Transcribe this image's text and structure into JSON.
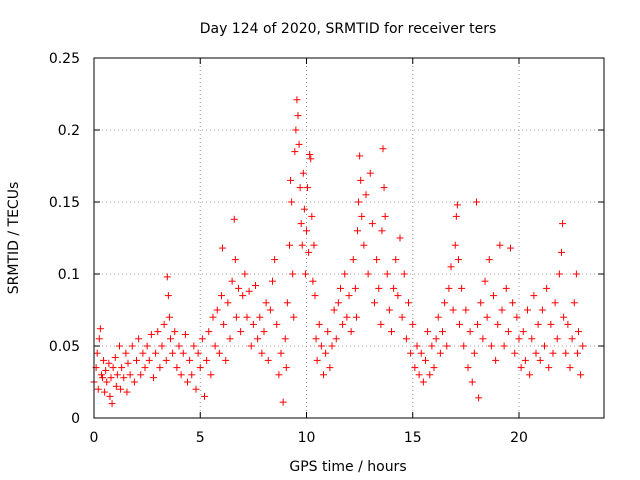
{
  "chart_data": {
    "type": "scatter",
    "title": "Day 124 of 2020, SRMTID for receiver ters",
    "xlabel": "GPS time / hours",
    "ylabel": "SRMTID / TECUs",
    "xlim": [
      0,
      24
    ],
    "ylim": [
      0,
      0.25
    ],
    "xticks": [
      0,
      5,
      10,
      15,
      20
    ],
    "xtick_labels": [
      "0",
      "5",
      "10",
      "15",
      "20"
    ],
    "yticks": [
      0,
      0.05,
      0.1,
      0.15,
      0.2,
      0.25
    ],
    "ytick_labels": [
      "0",
      "0.05",
      "0.1",
      "0.15",
      "0.2",
      "0.25"
    ],
    "grid": true,
    "marker": "plus",
    "color": "#ff0000",
    "series": [
      {
        "name": "SRMTID",
        "points": [
          [
            0.0,
            0.025
          ],
          [
            0.1,
            0.035
          ],
          [
            0.15,
            0.045
          ],
          [
            0.2,
            0.02
          ],
          [
            0.25,
            0.055
          ],
          [
            0.3,
            0.062
          ],
          [
            0.35,
            0.03
          ],
          [
            0.4,
            0.028
          ],
          [
            0.45,
            0.04
          ],
          [
            0.5,
            0.018
          ],
          [
            0.55,
            0.033
          ],
          [
            0.6,
            0.025
          ],
          [
            0.7,
            0.038
          ],
          [
            0.75,
            0.015
          ],
          [
            0.8,
            0.028
          ],
          [
            0.85,
            0.01
          ],
          [
            0.9,
            0.035
          ],
          [
            1.0,
            0.042
          ],
          [
            1.05,
            0.022
          ],
          [
            1.1,
            0.03
          ],
          [
            1.2,
            0.05
          ],
          [
            1.25,
            0.02
          ],
          [
            1.3,
            0.035
          ],
          [
            1.4,
            0.028
          ],
          [
            1.5,
            0.045
          ],
          [
            1.55,
            0.018
          ],
          [
            1.6,
            0.038
          ],
          [
            1.7,
            0.03
          ],
          [
            1.8,
            0.05
          ],
          [
            1.9,
            0.025
          ],
          [
            2.0,
            0.04
          ],
          [
            2.1,
            0.055
          ],
          [
            2.2,
            0.03
          ],
          [
            2.3,
            0.045
          ],
          [
            2.4,
            0.035
          ],
          [
            2.5,
            0.05
          ],
          [
            2.6,
            0.04
          ],
          [
            2.7,
            0.058
          ],
          [
            2.8,
            0.028
          ],
          [
            2.9,
            0.045
          ],
          [
            3.0,
            0.06
          ],
          [
            3.1,
            0.035
          ],
          [
            3.2,
            0.05
          ],
          [
            3.3,
            0.065
          ],
          [
            3.4,
            0.04
          ],
          [
            3.45,
            0.098
          ],
          [
            3.5,
            0.085
          ],
          [
            3.55,
            0.07
          ],
          [
            3.6,
            0.055
          ],
          [
            3.7,
            0.045
          ],
          [
            3.8,
            0.06
          ],
          [
            3.9,
            0.035
          ],
          [
            4.0,
            0.05
          ],
          [
            4.1,
            0.03
          ],
          [
            4.2,
            0.045
          ],
          [
            4.3,
            0.058
          ],
          [
            4.4,
            0.025
          ],
          [
            4.5,
            0.04
          ],
          [
            4.6,
            0.03
          ],
          [
            4.7,
            0.05
          ],
          [
            4.8,
            0.02
          ],
          [
            4.9,
            0.045
          ],
          [
            5.0,
            0.035
          ],
          [
            5.1,
            0.055
          ],
          [
            5.2,
            0.015
          ],
          [
            5.3,
            0.04
          ],
          [
            5.4,
            0.06
          ],
          [
            5.5,
            0.03
          ],
          [
            5.6,
            0.07
          ],
          [
            5.7,
            0.05
          ],
          [
            5.8,
            0.075
          ],
          [
            5.9,
            0.045
          ],
          [
            6.0,
            0.085
          ],
          [
            6.05,
            0.118
          ],
          [
            6.1,
            0.065
          ],
          [
            6.2,
            0.04
          ],
          [
            6.3,
            0.08
          ],
          [
            6.4,
            0.055
          ],
          [
            6.5,
            0.095
          ],
          [
            6.6,
            0.138
          ],
          [
            6.65,
            0.11
          ],
          [
            6.7,
            0.07
          ],
          [
            6.8,
            0.09
          ],
          [
            6.9,
            0.06
          ],
          [
            7.0,
            0.085
          ],
          [
            7.1,
            0.1
          ],
          [
            7.2,
            0.07
          ],
          [
            7.3,
            0.088
          ],
          [
            7.4,
            0.05
          ],
          [
            7.5,
            0.065
          ],
          [
            7.6,
            0.092
          ],
          [
            7.7,
            0.055
          ],
          [
            7.8,
            0.07
          ],
          [
            7.9,
            0.045
          ],
          [
            8.0,
            0.06
          ],
          [
            8.1,
            0.08
          ],
          [
            8.2,
            0.04
          ],
          [
            8.3,
            0.075
          ],
          [
            8.4,
            0.095
          ],
          [
            8.5,
            0.11
          ],
          [
            8.6,
            0.065
          ],
          [
            8.7,
            0.03
          ],
          [
            8.8,
            0.045
          ],
          [
            8.9,
            0.011
          ],
          [
            9.0,
            0.055
          ],
          [
            9.05,
            0.035
          ],
          [
            9.1,
            0.08
          ],
          [
            9.2,
            0.12
          ],
          [
            9.25,
            0.165
          ],
          [
            9.3,
            0.15
          ],
          [
            9.35,
            0.1
          ],
          [
            9.4,
            0.07
          ],
          [
            9.45,
            0.185
          ],
          [
            9.5,
            0.2
          ],
          [
            9.55,
            0.221
          ],
          [
            9.6,
            0.21
          ],
          [
            9.65,
            0.19
          ],
          [
            9.7,
            0.16
          ],
          [
            9.75,
            0.135
          ],
          [
            9.8,
            0.12
          ],
          [
            9.85,
            0.17
          ],
          [
            9.9,
            0.145
          ],
          [
            9.95,
            0.1
          ],
          [
            10.0,
            0.13
          ],
          [
            10.05,
            0.16
          ],
          [
            10.1,
            0.115
          ],
          [
            10.15,
            0.183
          ],
          [
            10.2,
            0.18
          ],
          [
            10.25,
            0.14
          ],
          [
            10.3,
            0.095
          ],
          [
            10.35,
            0.12
          ],
          [
            10.4,
            0.085
          ],
          [
            10.45,
            0.055
          ],
          [
            10.5,
            0.04
          ],
          [
            10.6,
            0.065
          ],
          [
            10.7,
            0.05
          ],
          [
            10.8,
            0.03
          ],
          [
            10.9,
            0.045
          ],
          [
            11.0,
            0.06
          ],
          [
            11.1,
            0.035
          ],
          [
            11.2,
            0.05
          ],
          [
            11.3,
            0.075
          ],
          [
            11.4,
            0.055
          ],
          [
            11.5,
            0.08
          ],
          [
            11.6,
            0.09
          ],
          [
            11.7,
            0.065
          ],
          [
            11.8,
            0.1
          ],
          [
            11.9,
            0.07
          ],
          [
            12.0,
            0.085
          ],
          [
            12.1,
            0.06
          ],
          [
            12.2,
            0.11
          ],
          [
            12.3,
            0.09
          ],
          [
            12.35,
            0.07
          ],
          [
            12.4,
            0.13
          ],
          [
            12.45,
            0.15
          ],
          [
            12.5,
            0.182
          ],
          [
            12.55,
            0.165
          ],
          [
            12.6,
            0.14
          ],
          [
            12.7,
            0.12
          ],
          [
            12.8,
            0.155
          ],
          [
            12.9,
            0.1
          ],
          [
            13.0,
            0.17
          ],
          [
            13.1,
            0.135
          ],
          [
            13.2,
            0.08
          ],
          [
            13.3,
            0.11
          ],
          [
            13.4,
            0.09
          ],
          [
            13.5,
            0.065
          ],
          [
            13.55,
            0.13
          ],
          [
            13.6,
            0.187
          ],
          [
            13.65,
            0.16
          ],
          [
            13.7,
            0.14
          ],
          [
            13.8,
            0.1
          ],
          [
            13.9,
            0.075
          ],
          [
            14.0,
            0.06
          ],
          [
            14.1,
            0.09
          ],
          [
            14.2,
            0.11
          ],
          [
            14.3,
            0.085
          ],
          [
            14.4,
            0.125
          ],
          [
            14.5,
            0.07
          ],
          [
            14.6,
            0.1
          ],
          [
            14.7,
            0.055
          ],
          [
            14.8,
            0.08
          ],
          [
            14.9,
            0.045
          ],
          [
            15.0,
            0.065
          ],
          [
            15.1,
            0.035
          ],
          [
            15.2,
            0.05
          ],
          [
            15.3,
            0.03
          ],
          [
            15.4,
            0.045
          ],
          [
            15.5,
            0.025
          ],
          [
            15.6,
            0.04
          ],
          [
            15.7,
            0.06
          ],
          [
            15.8,
            0.03
          ],
          [
            15.9,
            0.05
          ],
          [
            16.0,
            0.035
          ],
          [
            16.1,
            0.055
          ],
          [
            16.2,
            0.07
          ],
          [
            16.3,
            0.045
          ],
          [
            16.4,
            0.06
          ],
          [
            16.5,
            0.08
          ],
          [
            16.6,
            0.05
          ],
          [
            16.7,
            0.09
          ],
          [
            16.8,
            0.105
          ],
          [
            16.9,
            0.075
          ],
          [
            17.0,
            0.12
          ],
          [
            17.05,
            0.14
          ],
          [
            17.1,
            0.148
          ],
          [
            17.15,
            0.11
          ],
          [
            17.2,
            0.065
          ],
          [
            17.3,
            0.09
          ],
          [
            17.4,
            0.05
          ],
          [
            17.5,
            0.075
          ],
          [
            17.6,
            0.035
          ],
          [
            17.7,
            0.06
          ],
          [
            17.8,
            0.025
          ],
          [
            17.9,
            0.045
          ],
          [
            18.0,
            0.15
          ],
          [
            18.05,
            0.065
          ],
          [
            18.1,
            0.014
          ],
          [
            18.2,
            0.08
          ],
          [
            18.3,
            0.055
          ],
          [
            18.4,
            0.095
          ],
          [
            18.5,
            0.07
          ],
          [
            18.6,
            0.11
          ],
          [
            18.7,
            0.05
          ],
          [
            18.8,
            0.085
          ],
          [
            18.9,
            0.04
          ],
          [
            19.0,
            0.065
          ],
          [
            19.1,
            0.12
          ],
          [
            19.2,
            0.075
          ],
          [
            19.3,
            0.05
          ],
          [
            19.4,
            0.09
          ],
          [
            19.5,
            0.06
          ],
          [
            19.6,
            0.118
          ],
          [
            19.7,
            0.08
          ],
          [
            19.8,
            0.045
          ],
          [
            19.9,
            0.07
          ],
          [
            20.0,
            0.055
          ],
          [
            20.1,
            0.035
          ],
          [
            20.2,
            0.06
          ],
          [
            20.3,
            0.04
          ],
          [
            20.4,
            0.075
          ],
          [
            20.5,
            0.03
          ],
          [
            20.6,
            0.055
          ],
          [
            20.7,
            0.085
          ],
          [
            20.8,
            0.045
          ],
          [
            20.9,
            0.065
          ],
          [
            21.0,
            0.04
          ],
          [
            21.1,
            0.075
          ],
          [
            21.2,
            0.05
          ],
          [
            21.3,
            0.09
          ],
          [
            21.4,
            0.035
          ],
          [
            21.5,
            0.065
          ],
          [
            21.6,
            0.045
          ],
          [
            21.7,
            0.08
          ],
          [
            21.8,
            0.055
          ],
          [
            21.9,
            0.1
          ],
          [
            22.0,
            0.115
          ],
          [
            22.05,
            0.135
          ],
          [
            22.1,
            0.07
          ],
          [
            22.2,
            0.045
          ],
          [
            22.3,
            0.065
          ],
          [
            22.4,
            0.035
          ],
          [
            22.5,
            0.055
          ],
          [
            22.6,
            0.08
          ],
          [
            22.7,
            0.1
          ],
          [
            22.75,
            0.045
          ],
          [
            22.8,
            0.06
          ],
          [
            22.9,
            0.03
          ],
          [
            23.0,
            0.05
          ]
        ]
      }
    ]
  }
}
